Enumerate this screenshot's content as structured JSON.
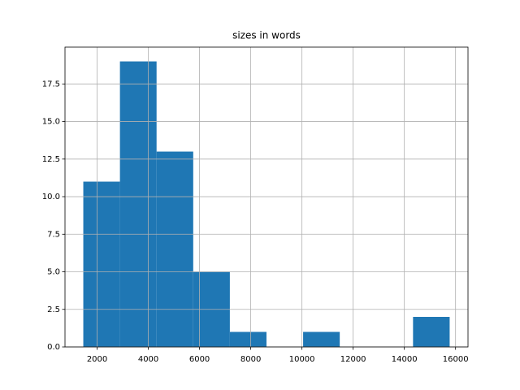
{
  "chart_data": {
    "type": "histogram",
    "title": "sizes in words",
    "bins": [
      1460,
      2891,
      4322,
      5753,
      7184,
      8615,
      10046,
      11477,
      12908,
      14339,
      15770
    ],
    "values": [
      11,
      19,
      13,
      5,
      1,
      0,
      1,
      0,
      0,
      2
    ],
    "color": "#1f77b4",
    "xlim": [
      745,
      16486
    ],
    "xticks": [
      2000,
      4000,
      6000,
      8000,
      10000,
      12000,
      14000,
      16000
    ],
    "ylim": [
      0,
      19.95
    ],
    "yticks": [
      {
        "value": 0,
        "label": "0.0"
      },
      2.5,
      {
        "value": 5,
        "label": "5.0"
      },
      7.5,
      {
        "value": 10,
        "label": "10.0"
      },
      12.5,
      {
        "value": 15,
        "label": "15.0"
      },
      17.5
    ],
    "grid": true
  }
}
